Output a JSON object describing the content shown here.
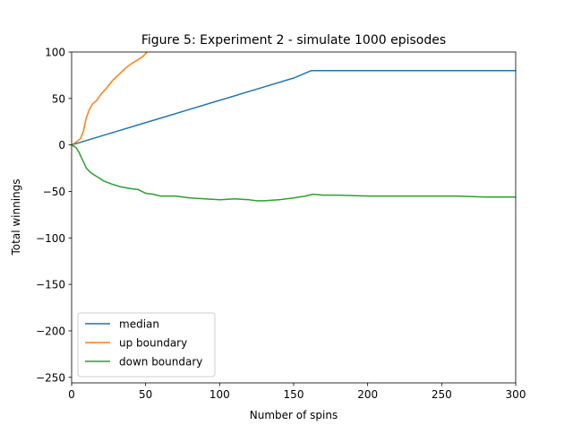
{
  "chart_data": {
    "type": "line",
    "title": "Figure 5: Experiment 2 - simulate 1000 episodes",
    "xlabel": "Number of spins",
    "ylabel": "Total winnings",
    "xlim": [
      0,
      300
    ],
    "ylim": [
      -256,
      100
    ],
    "xticks": [
      0,
      50,
      100,
      150,
      200,
      250,
      300
    ],
    "xtick_labels": [
      "0",
      "50",
      "100",
      "150",
      "200",
      "250",
      "300"
    ],
    "yticks": [
      100,
      50,
      0,
      -50,
      -100,
      -150,
      -200,
      -250
    ],
    "ytick_labels": [
      "100",
      "50",
      "0",
      "−50",
      "−100",
      "−150",
      "−200",
      "−250"
    ],
    "grid": false,
    "legend_position": "lower-left",
    "series": [
      {
        "name": "median",
        "color": "#1f77b4",
        "x": [
          0,
          25,
          50,
          75,
          100,
          125,
          150,
          162,
          170,
          200,
          250,
          300
        ],
        "y": [
          0,
          12,
          24,
          36,
          48,
          60,
          72,
          80,
          80,
          80,
          80,
          80
        ]
      },
      {
        "name": "up boundary",
        "color": "#ff7f0e",
        "x": [
          0,
          3,
          6,
          8,
          10,
          12,
          14,
          17,
          20,
          24,
          28,
          32,
          36,
          40,
          44,
          48,
          51
        ],
        "y": [
          0,
          3,
          7,
          15,
          30,
          38,
          44,
          48,
          55,
          62,
          70,
          76,
          82,
          87,
          91,
          95,
          100
        ]
      },
      {
        "name": "down boundary",
        "color": "#2ca02c",
        "x": [
          0,
          3,
          5,
          7,
          10,
          13,
          17,
          22,
          27,
          33,
          40,
          45,
          50,
          55,
          60,
          70,
          80,
          90,
          100,
          110,
          120,
          125,
          130,
          140,
          150,
          158,
          163,
          170,
          180,
          200,
          230,
          260,
          280,
          300
        ],
        "y": [
          0,
          -3,
          -8,
          -15,
          -25,
          -30,
          -34,
          -39,
          -42,
          -45,
          -47,
          -48,
          -52,
          -53,
          -55,
          -55,
          -57,
          -58,
          -59,
          -58,
          -59,
          -60,
          -60,
          -59,
          -57,
          -55,
          -53,
          -54,
          -54,
          -55,
          -55,
          -55,
          -56,
          -56
        ]
      }
    ]
  }
}
